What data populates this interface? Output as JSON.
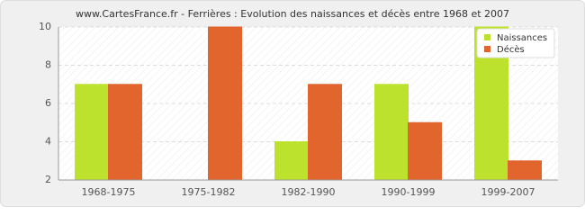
{
  "chart_data": {
    "type": "bar",
    "title": "www.CartesFrance.fr - Ferrières : Evolution des naissances et décès entre 1968 et 2007",
    "categories": [
      "1968-1975",
      "1975-1982",
      "1982-1990",
      "1990-1999",
      "1999-2007"
    ],
    "series": [
      {
        "name": "Naissances",
        "color": "#bde22e",
        "values": [
          7,
          2,
          4,
          7,
          10
        ]
      },
      {
        "name": "Décès",
        "color": "#e2652e",
        "values": [
          7,
          10,
          7,
          5,
          3
        ]
      }
    ],
    "ylim": [
      2,
      10
    ],
    "yticks": [
      2,
      4,
      6,
      8,
      10
    ],
    "grid": true,
    "legend": "top-right"
  }
}
